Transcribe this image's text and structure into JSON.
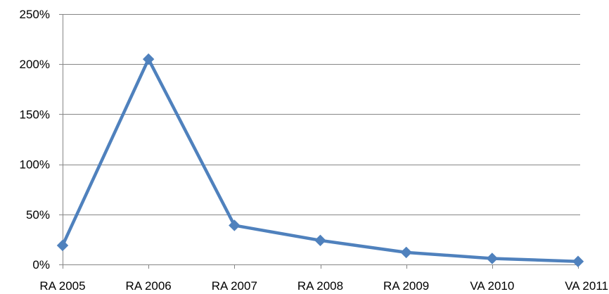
{
  "chart_data": {
    "type": "line",
    "title": "",
    "xlabel": "",
    "ylabel": "",
    "categories": [
      "RA 2005",
      "RA 2006",
      "RA 2007",
      "RA 2008",
      "RA 2009",
      "VA 2010",
      "VA 2011"
    ],
    "series": [
      {
        "values": [
          19,
          205,
          39,
          24,
          12,
          6,
          3
        ],
        "color": "#4f81bd",
        "marker": "diamond"
      }
    ],
    "ylim": [
      0,
      250
    ],
    "yticks": [
      0,
      50,
      100,
      150,
      200,
      250
    ],
    "ytick_labels": [
      "0%",
      "50%",
      "100%",
      "150%",
      "200%",
      "250%"
    ],
    "grid": true,
    "gridline_color": "#868686",
    "legend": "none"
  }
}
